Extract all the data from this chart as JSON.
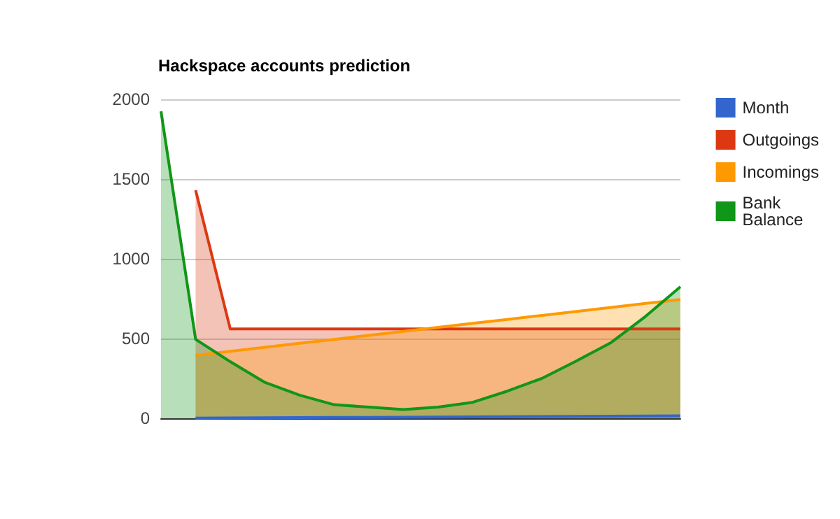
{
  "chart_data": {
    "type": "area",
    "title": "Hackspace accounts prediction",
    "categories": [
      null,
      null,
      null,
      null,
      null,
      null,
      null,
      null,
      null,
      null,
      null,
      null,
      null,
      null,
      null,
      null
    ],
    "series": [
      {
        "name": "Month",
        "color": "#3366cc",
        "values": [
          null,
          1,
          2,
          3,
          4,
          5,
          6,
          7,
          8,
          9,
          10,
          11,
          12,
          13,
          14,
          15
        ]
      },
      {
        "name": "Outgoings",
        "color": "#dc3912",
        "values": [
          null,
          1430,
          560,
          560,
          560,
          560,
          560,
          560,
          560,
          560,
          560,
          560,
          560,
          560,
          560,
          560
        ]
      },
      {
        "name": "Incomings",
        "color": "#ff9900",
        "values": [
          null,
          395,
          420,
          445,
          470,
          495,
          520,
          545,
          570,
          595,
          620,
          645,
          670,
          695,
          720,
          745
        ]
      },
      {
        "name": "Bank Balance",
        "color": "#109618",
        "values": [
          1925,
          495,
          355,
          225,
          145,
          85,
          70,
          55,
          70,
          100,
          170,
          250,
          360,
          475,
          640,
          825
        ]
      }
    ],
    "ylim": [
      0,
      2000
    ],
    "yticks": [
      0,
      500,
      1000,
      1500,
      2000
    ],
    "grid": "y",
    "legend": "right"
  }
}
